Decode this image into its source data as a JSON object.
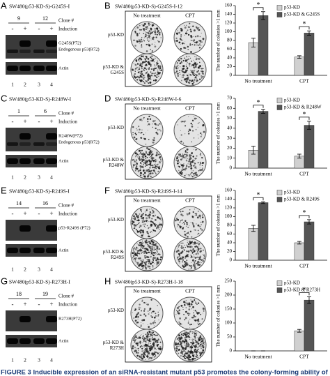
{
  "panels": [
    {
      "blot": {
        "label": "A",
        "title": "SW480(p53-KD-S)-G245S-I",
        "clones": [
          "9",
          "12"
        ],
        "clone_header": "Clone #",
        "induction_label": "Induction",
        "induction": [
          "-",
          "+",
          "-",
          "+"
        ],
        "bands": [
          "G245S(P72)",
          "Endogenous p53(R72)",
          "Actin"
        ],
        "lanes": [
          "1",
          "2",
          "3",
          "4"
        ]
      },
      "colony": {
        "label": "B",
        "title": "SW480(p53-KD-S)-G245S-I-12",
        "columns": [
          "No treatment",
          "CPT"
        ],
        "rows": [
          "p53-KD",
          "p53-KD & G245S"
        ]
      }
    },
    {
      "blot": {
        "label": "C",
        "title": "SW480(p53-KD-S)-R248W-I",
        "clones": [
          "1",
          "6"
        ],
        "clone_header": "Clone #",
        "induction_label": "Induction",
        "induction": [
          "-",
          "+",
          "-",
          "+"
        ],
        "bands": [
          "R248W(P72)",
          "Endogenous p53(R72)",
          "Actin"
        ],
        "lanes": [
          "1",
          "2",
          "3",
          "4"
        ]
      },
      "colony": {
        "label": "D",
        "title": "SW480(p53-KD-S)-R248W-I-6",
        "columns": [
          "No treatment",
          "CPT"
        ],
        "rows": [
          "p53-KD",
          "p53-KD & R248W"
        ]
      }
    },
    {
      "blot": {
        "label": "E",
        "title": "SW480(p53-KD-S)-R249S-I",
        "clones": [
          "14",
          "16"
        ],
        "clone_header": "Clone #",
        "induction_label": "Induction",
        "induction": [
          "-",
          "+",
          "-",
          "+"
        ],
        "bands": [
          "p53-R249S (P72)",
          "Actin"
        ],
        "lanes": [
          "1",
          "2",
          "3",
          "4"
        ]
      },
      "colony": {
        "label": "F",
        "title": "SW480(p53-KD-S)-R249S-I-14",
        "columns": [
          "No treatment",
          "CPT"
        ],
        "rows": [
          "p53-KD",
          "p53-KD & R249S"
        ]
      }
    },
    {
      "blot": {
        "label": "G",
        "title": "SW480(p53-KD-S)-R273H-I",
        "clones": [
          "18",
          "19"
        ],
        "clone_header": "Clone #",
        "induction_label": "Induction",
        "induction": [
          "-",
          "+",
          "-",
          "+"
        ],
        "bands": [
          "R273H(P72)",
          "Actin"
        ],
        "lanes": [
          "1",
          "2",
          "3",
          "4"
        ]
      },
      "colony": {
        "label": "H",
        "title": "SW480(p53-KD-S)-R273H-I-18",
        "columns": [
          "No treatment",
          "CPT"
        ],
        "rows": [
          "p53-KD",
          "p53-KD & R273H"
        ]
      }
    }
  ],
  "chart_data": [
    {
      "type": "bar",
      "y_label": "The number of colonies >1 mm",
      "categories": [
        "No treatment",
        "CPT"
      ],
      "series": [
        {
          "name": "p53-KD",
          "color": "#d0d0d0",
          "values": [
            75,
            42
          ],
          "errors": [
            10,
            3
          ]
        },
        {
          "name": "p53-KD & G245S",
          "color": "#555555",
          "values": [
            137,
            97
          ],
          "errors": [
            9,
            5
          ]
        }
      ],
      "ylim": [
        0,
        160
      ],
      "yticks": [
        0,
        20,
        40,
        60,
        80,
        100,
        120,
        140,
        160
      ],
      "legend": "upper right",
      "significance": [
        "*",
        "*"
      ]
    },
    {
      "type": "bar",
      "y_label": "The number of colonies >1 mm",
      "categories": [
        "No treatment",
        "CPT"
      ],
      "series": [
        {
          "name": "p53-KD",
          "color": "#d0d0d0",
          "values": [
            18,
            12
          ],
          "errors": [
            4,
            2
          ]
        },
        {
          "name": "p53-KD & R248W",
          "color": "#555555",
          "values": [
            57,
            43
          ],
          "errors": [
            2,
            4
          ]
        }
      ],
      "ylim": [
        0,
        70
      ],
      "yticks": [
        0,
        10,
        20,
        30,
        40,
        50,
        60,
        70
      ],
      "legend": "upper right",
      "significance": [
        "*",
        "*"
      ]
    },
    {
      "type": "bar",
      "y_label": "The number of colonies >1 mm",
      "categories": [
        "No treatment",
        "CPT"
      ],
      "series": [
        {
          "name": "p53-KD",
          "color": "#d0d0d0",
          "values": [
            73,
            40
          ],
          "errors": [
            7,
            3
          ]
        },
        {
          "name": "p53-KD & R249S",
          "color": "#555555",
          "values": [
            132,
            88
          ],
          "errors": [
            2,
            5
          ]
        }
      ],
      "ylim": [
        0,
        160
      ],
      "yticks": [
        0,
        20,
        40,
        60,
        80,
        100,
        120,
        140,
        160
      ],
      "legend": "upper right",
      "significance": [
        "*",
        "*"
      ]
    },
    {
      "type": "bar",
      "y_label": "The number of colonies >1 mm",
      "categories": [
        "No treatment",
        "CPT"
      ],
      "series": [
        {
          "name": "p53-KD",
          "color": "#d0d0d0",
          "values": [
            0,
            72
          ],
          "errors": [
            0,
            5
          ]
        },
        {
          "name": "p53-KD & R273H",
          "color": "#555555",
          "values": [
            0,
            182
          ],
          "errors": [
            0,
            12
          ]
        }
      ],
      "ylim": [
        0,
        250
      ],
      "yticks": [
        0,
        50,
        100,
        150,
        200,
        250
      ],
      "legend": "upper right",
      "significance": [
        null,
        "*"
      ]
    }
  ],
  "caption": "FIGURE 3 Inducible expression of an siRNA-resistant mutant p53 promotes the colony-forming ability of"
}
